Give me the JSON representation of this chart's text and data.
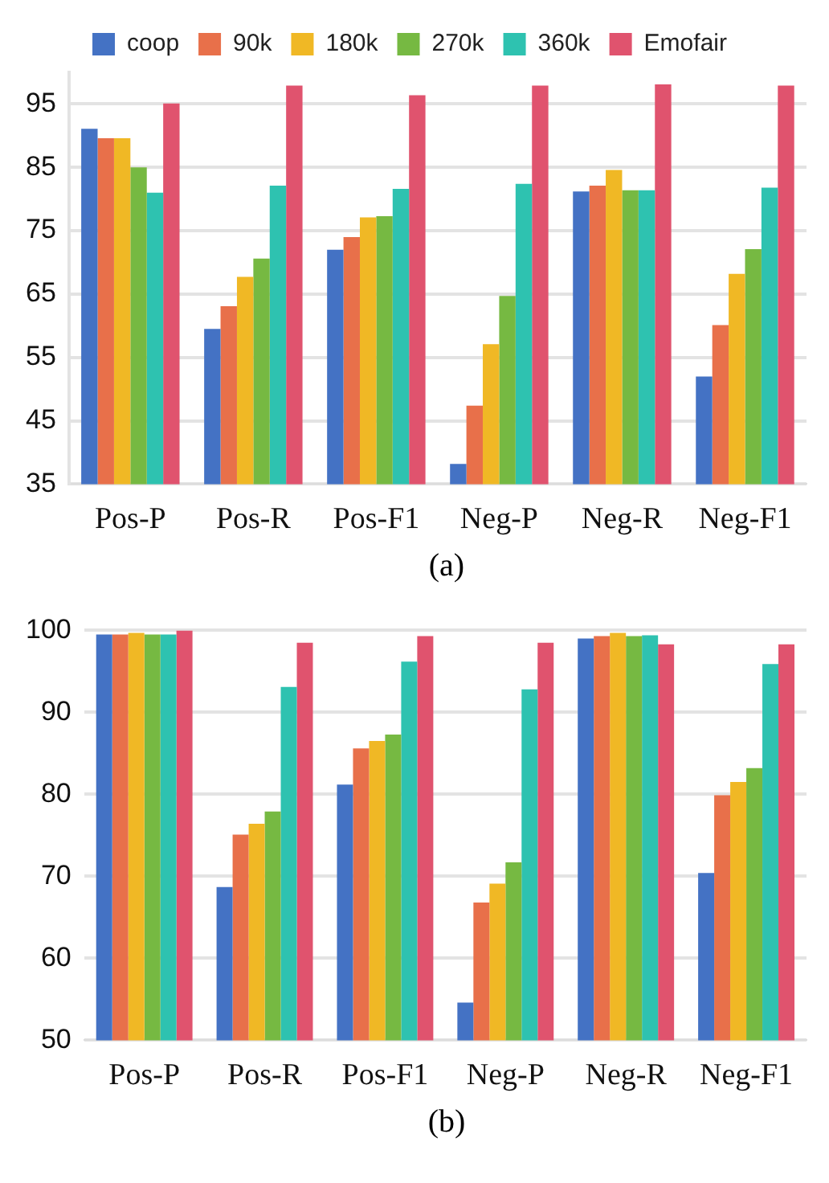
{
  "chart_data": [
    {
      "type": "bar",
      "categories": [
        "Pos-P",
        "Pos-R",
        "Pos-F1",
        "Neg-P",
        "Neg-R",
        "Neg-F1"
      ],
      "ylim": [
        35,
        100
      ],
      "yticks": [
        35,
        45,
        55,
        65,
        75,
        85,
        95
      ],
      "grid": "y",
      "legend": "top",
      "annotations": [
        "(a)"
      ],
      "series": [
        {
          "name": "coop",
          "color": "#4472c4",
          "values": [
            91.1,
            59.5,
            72.0,
            38.2,
            81.2,
            52.0
          ]
        },
        {
          "name": "90k",
          "color": "#e8704a",
          "values": [
            89.6,
            63.1,
            74.0,
            47.4,
            82.1,
            60.1
          ]
        },
        {
          "name": "180k",
          "color": "#f0b825",
          "values": [
            89.6,
            67.7,
            77.1,
            57.1,
            84.6,
            68.2
          ]
        },
        {
          "name": "270k",
          "color": "#76b942",
          "values": [
            85.0,
            70.6,
            77.3,
            64.7,
            81.4,
            72.1
          ]
        },
        {
          "name": "360k",
          "color": "#2ec2b0",
          "values": [
            81.0,
            82.1,
            81.6,
            82.4,
            81.4,
            81.8
          ]
        },
        {
          "name": "Emofair",
          "color": "#e0536e",
          "values": [
            95.1,
            97.9,
            96.4,
            97.9,
            98.1,
            97.9
          ]
        }
      ]
    },
    {
      "type": "bar",
      "categories": [
        "Pos-P",
        "Pos-R",
        "Pos-F1",
        "Neg-P",
        "Neg-R",
        "Neg-F1"
      ],
      "ylim": [
        50,
        100
      ],
      "yticks": [
        50,
        60,
        70,
        80,
        90,
        100
      ],
      "grid": "y",
      "annotations": [
        "(b)"
      ],
      "series": [
        {
          "color": "#4472c4",
          "values": [
            99.5,
            68.7,
            81.2,
            54.6,
            99.0,
            70.4
          ]
        },
        {
          "color": "#e8704a",
          "values": [
            99.5,
            75.1,
            85.6,
            66.8,
            99.3,
            79.9
          ]
        },
        {
          "color": "#f0b825",
          "values": [
            99.7,
            76.4,
            86.5,
            69.1,
            99.7,
            81.5
          ]
        },
        {
          "color": "#76b942",
          "values": [
            99.5,
            77.9,
            87.3,
            71.7,
            99.3,
            83.2
          ]
        },
        {
          "color": "#2ec2b0",
          "values": [
            99.5,
            93.1,
            96.2,
            92.8,
            99.4,
            95.9
          ]
        },
        {
          "color": "#e0536e",
          "values": [
            100,
            98.5,
            99.3,
            98.5,
            98.3,
            98.3
          ]
        }
      ]
    }
  ]
}
